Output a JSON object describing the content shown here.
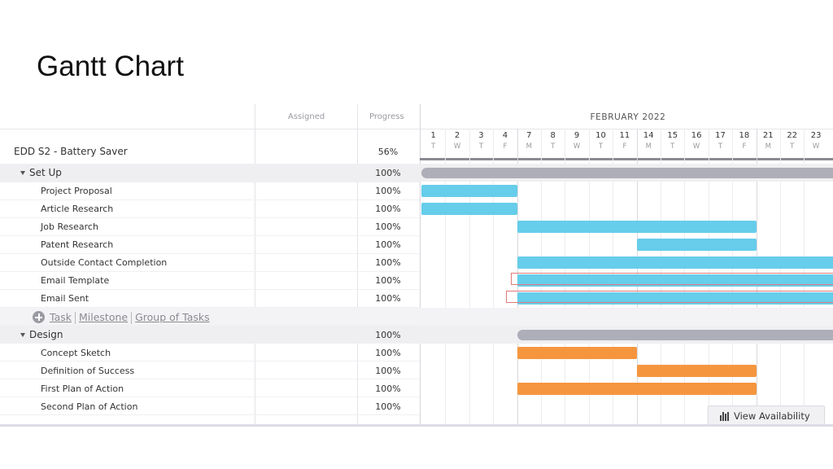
{
  "slide": {
    "title": "Gantt Chart"
  },
  "columns": {
    "assigned": "Assigned",
    "progress": "Progress"
  },
  "timeline": {
    "month": "FEBRUARY 2022",
    "days": [
      {
        "num": "1",
        "dow": "T"
      },
      {
        "num": "2",
        "dow": "W"
      },
      {
        "num": "3",
        "dow": "T"
      },
      {
        "num": "4",
        "dow": "F"
      },
      {
        "num": "7",
        "dow": "M"
      },
      {
        "num": "8",
        "dow": "T"
      },
      {
        "num": "9",
        "dow": "W"
      },
      {
        "num": "10",
        "dow": "T"
      },
      {
        "num": "11",
        "dow": "F"
      },
      {
        "num": "14",
        "dow": "M"
      },
      {
        "num": "15",
        "dow": "T"
      },
      {
        "num": "16",
        "dow": "W"
      },
      {
        "num": "17",
        "dow": "T"
      },
      {
        "num": "18",
        "dow": "F"
      },
      {
        "num": "21",
        "dow": "M"
      },
      {
        "num": "22",
        "dow": "T"
      },
      {
        "num": "23",
        "dow": "W"
      }
    ]
  },
  "project": {
    "name": "EDD S2 - Battery Saver",
    "progress": "56%"
  },
  "add_row": {
    "task": "Task",
    "milestone": "Milestone",
    "group": "Group of Tasks"
  },
  "rows": [
    {
      "kind": "group",
      "name": "Set Up",
      "progress": "100%",
      "bar": {
        "start": 0,
        "end": null,
        "style": "summary"
      }
    },
    {
      "kind": "task",
      "name": "Project Proposal",
      "progress": "100%",
      "bar": {
        "start": 0,
        "end": 4,
        "style": "setup"
      }
    },
    {
      "kind": "task",
      "name": "Article Research",
      "progress": "100%",
      "bar": {
        "start": 0,
        "end": 4,
        "style": "setup"
      }
    },
    {
      "kind": "task",
      "name": "Job Research",
      "progress": "100%",
      "bar": {
        "start": 4,
        "end": 14,
        "style": "setup"
      }
    },
    {
      "kind": "task",
      "name": "Patent Research",
      "progress": "100%",
      "bar": {
        "start": 9,
        "end": 14,
        "style": "setup"
      }
    },
    {
      "kind": "task",
      "name": "Outside Contact Completion",
      "progress": "100%",
      "bar": {
        "start": 4,
        "end": null,
        "style": "setup"
      }
    },
    {
      "kind": "task",
      "name": "Email Template",
      "progress": "100%",
      "bar": {
        "start": 4,
        "end": null,
        "style": "setup"
      },
      "dependency": true
    },
    {
      "kind": "task",
      "name": "Email Sent",
      "progress": "100%",
      "bar": {
        "start": 4,
        "end": null,
        "style": "setup"
      },
      "dependency": true
    },
    {
      "kind": "add"
    },
    {
      "kind": "group",
      "name": "Design",
      "progress": "100%",
      "bar": {
        "start": 4,
        "end": null,
        "style": "summary"
      }
    },
    {
      "kind": "task",
      "name": "Concept Sketch",
      "progress": "100%",
      "bar": {
        "start": 4,
        "end": 9,
        "style": "design"
      }
    },
    {
      "kind": "task",
      "name": "Definition of Success",
      "progress": "100%",
      "bar": {
        "start": 9,
        "end": 14,
        "style": "design"
      }
    },
    {
      "kind": "task",
      "name": "First Plan of Action",
      "progress": "100%",
      "bar": {
        "start": 4,
        "end": 14,
        "style": "design"
      }
    },
    {
      "kind": "task",
      "name": "Second Plan of Action",
      "progress": "100%",
      "bar": null
    }
  ],
  "colors": {
    "setup": "#66cdea",
    "design": "#f5963f",
    "summary": "#aeaeb9",
    "dependency": "#e07a7a"
  },
  "buttons": {
    "view_availability": "View Availability"
  },
  "icons": {
    "add": "plus-circle-icon",
    "caret": "caret-down-icon",
    "availability": "bar-chart-icon"
  }
}
